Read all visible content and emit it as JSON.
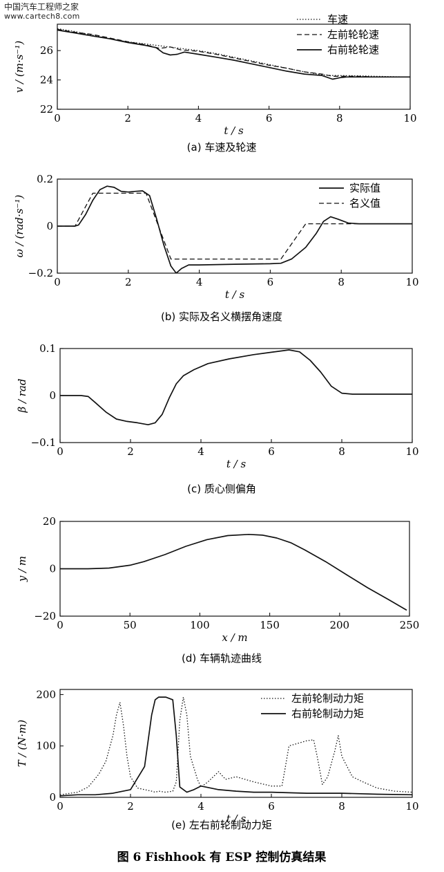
{
  "watermark": {
    "line1": "中国汽车工程师之家",
    "line2": "www.cartech8.com"
  },
  "figure_title": "图 6   Fishhook 有 ESP 控制仿真结果",
  "chart_data": [
    {
      "id": "a",
      "type": "line",
      "caption": "(a)  车速及轮速",
      "xlabel": "t / s",
      "ylabel": "v / (m·s⁻¹)",
      "xlim": [
        0,
        10
      ],
      "ylim": [
        22,
        27.8
      ],
      "xticks": [
        0,
        2,
        4,
        6,
        8,
        10
      ],
      "yticks": [
        22,
        24,
        26
      ],
      "legend_position": "top-right",
      "series": [
        {
          "name": "车速",
          "style": "dotted",
          "x": [
            0,
            0.5,
            1,
            1.5,
            2,
            2.5,
            3,
            3.5,
            4,
            4.5,
            5,
            5.5,
            6,
            6.5,
            7,
            7.5,
            7.8,
            8,
            8.5,
            9,
            9.5,
            10
          ],
          "y": [
            27.5,
            27.3,
            27.05,
            26.8,
            26.6,
            26.45,
            26.3,
            26.15,
            26.0,
            25.8,
            25.55,
            25.3,
            25.05,
            24.8,
            24.55,
            24.35,
            24.3,
            24.3,
            24.28,
            24.25,
            24.22,
            24.2
          ]
        },
        {
          "name": "左前轮轮速",
          "style": "dashed",
          "x": [
            0,
            0.5,
            1,
            1.5,
            2,
            2.5,
            2.9,
            3.2,
            3.5,
            4,
            4.5,
            5,
            5.5,
            6,
            6.5,
            7,
            7.5,
            7.8,
            8,
            8.5,
            9,
            9.5,
            10
          ],
          "y": [
            27.45,
            27.25,
            27.1,
            26.85,
            26.6,
            26.4,
            26.15,
            26.25,
            26.05,
            25.95,
            25.75,
            25.5,
            25.25,
            25.0,
            24.8,
            24.55,
            24.4,
            24.25,
            24.25,
            24.25,
            24.2,
            24.2,
            24.2
          ]
        },
        {
          "name": "右前轮轮速",
          "style": "solid",
          "x": [
            0,
            0.5,
            1,
            1.5,
            2,
            2.5,
            2.8,
            3.0,
            3.2,
            3.4,
            3.6,
            4,
            4.5,
            5,
            5.5,
            6,
            6.5,
            7,
            7.5,
            7.8,
            8,
            8.2,
            8.5,
            9,
            9.5,
            10
          ],
          "y": [
            27.4,
            27.2,
            27.0,
            26.8,
            26.55,
            26.35,
            26.2,
            25.85,
            25.7,
            25.75,
            25.9,
            25.75,
            25.55,
            25.35,
            25.1,
            24.85,
            24.6,
            24.4,
            24.3,
            24.05,
            24.15,
            24.2,
            24.2,
            24.2,
            24.2,
            24.2
          ]
        }
      ]
    },
    {
      "id": "b",
      "type": "line",
      "caption": "(b)  实际及名义横摆角速度",
      "xlabel": "t / s",
      "ylabel": "ω / (rad·s⁻¹)",
      "xlim": [
        0,
        10
      ],
      "ylim": [
        -0.2,
        0.2
      ],
      "xticks": [
        0,
        2,
        4,
        6,
        8,
        10
      ],
      "yticks": [
        -0.2,
        0,
        0.2
      ],
      "ytick_labels": [
        "-0.2",
        "0",
        "0.2"
      ],
      "legend_position": "top-right",
      "series": [
        {
          "name": "实际值",
          "style": "solid",
          "x": [
            0,
            0.5,
            0.6,
            0.8,
            1.0,
            1.2,
            1.4,
            1.6,
            1.8,
            2.0,
            2.2,
            2.4,
            2.6,
            2.8,
            3.0,
            3.2,
            3.35,
            3.5,
            3.7,
            4,
            5,
            6,
            6.3,
            6.6,
            7.0,
            7.3,
            7.5,
            7.7,
            7.9,
            8.2,
            8.5,
            9,
            10
          ],
          "y": [
            0,
            0,
            0.005,
            0.05,
            0.11,
            0.155,
            0.17,
            0.165,
            0.148,
            0.145,
            0.148,
            0.15,
            0.13,
            0.03,
            -0.08,
            -0.17,
            -0.2,
            -0.18,
            -0.165,
            -0.165,
            -0.162,
            -0.16,
            -0.158,
            -0.14,
            -0.09,
            -0.03,
            0.02,
            0.04,
            0.03,
            0.013,
            0.01,
            0.01,
            0.01
          ]
        },
        {
          "name": "名义值",
          "style": "dashed",
          "x": [
            0,
            0.5,
            1.0,
            2.5,
            3.2,
            6.3,
            7.0,
            10
          ],
          "y": [
            0,
            0,
            0.14,
            0.14,
            -0.14,
            -0.14,
            0.01,
            0.01
          ]
        }
      ]
    },
    {
      "id": "c",
      "type": "line",
      "caption": "(c)  质心侧偏角",
      "xlabel": "t / s",
      "ylabel": "β / rad",
      "xlim": [
        0,
        10
      ],
      "ylim": [
        -0.1,
        0.1
      ],
      "xticks": [
        0,
        2,
        4,
        6,
        8,
        10
      ],
      "yticks": [
        -0.1,
        0,
        0.1
      ],
      "ytick_labels": [
        "-0.1",
        "0",
        "0.1"
      ],
      "series": [
        {
          "name": "",
          "style": "solid",
          "x": [
            0,
            0.6,
            0.8,
            1.0,
            1.3,
            1.6,
            1.9,
            2.2,
            2.5,
            2.7,
            2.9,
            3.1,
            3.3,
            3.5,
            3.8,
            4.2,
            4.8,
            5.5,
            6.0,
            6.3,
            6.5,
            6.8,
            7.1,
            7.4,
            7.7,
            8.0,
            8.3,
            9,
            10
          ],
          "y": [
            0,
            0,
            -0.002,
            -0.015,
            -0.035,
            -0.05,
            -0.055,
            -0.058,
            -0.062,
            -0.058,
            -0.04,
            -0.005,
            0.025,
            0.042,
            0.055,
            0.068,
            0.078,
            0.087,
            0.092,
            0.095,
            0.097,
            0.093,
            0.075,
            0.05,
            0.02,
            0.005,
            0.003,
            0.003,
            0.003
          ]
        }
      ]
    },
    {
      "id": "d",
      "type": "line",
      "caption": "(d)  车辆轨迹曲线",
      "xlabel": "x / m",
      "ylabel": "y / m",
      "xlim": [
        0,
        250
      ],
      "ylim": [
        -20,
        20
      ],
      "xticks": [
        0,
        50,
        100,
        150,
        200,
        250
      ],
      "yticks": [
        -20,
        0,
        20
      ],
      "ytick_labels": [
        "-20",
        "0",
        "20"
      ],
      "series": [
        {
          "name": "",
          "style": "solid",
          "x": [
            0,
            20,
            35,
            50,
            60,
            75,
            90,
            105,
            120,
            135,
            145,
            155,
            165,
            175,
            190,
            205,
            220,
            235,
            248
          ],
          "y": [
            0,
            0,
            0.3,
            1.5,
            3.0,
            6.0,
            9.5,
            12.3,
            14.0,
            14.5,
            14.2,
            13.0,
            11.0,
            8.0,
            3.0,
            -2.5,
            -8.0,
            -13.0,
            -17.5
          ]
        }
      ]
    },
    {
      "id": "e",
      "type": "line",
      "caption": "(e)  左右前轮制动力矩",
      "xlabel": "t / s",
      "ylabel": "T / (N·m)",
      "xlim": [
        0,
        10
      ],
      "ylim": [
        0,
        210
      ],
      "xticks": [
        0,
        2,
        4,
        6,
        8,
        10
      ],
      "yticks": [
        0,
        100,
        200
      ],
      "legend_position": "top-right",
      "series": [
        {
          "name": "左前轮制动力矩",
          "style": "dotted",
          "x": [
            0,
            0.5,
            0.8,
            1.1,
            1.3,
            1.5,
            1.6,
            1.7,
            1.8,
            1.9,
            2.0,
            2.2,
            2.4,
            2.6,
            2.7,
            2.8,
            3.0,
            3.2,
            3.3,
            3.4,
            3.5,
            3.6,
            3.7,
            3.9,
            4.0,
            4.2,
            4.5,
            4.7,
            5.0,
            5.5,
            6.0,
            6.3,
            6.4,
            6.5,
            7.0,
            7.2,
            7.3,
            7.45,
            7.6,
            7.8,
            7.9,
            8.0,
            8.3,
            8.6,
            9.0,
            9.5,
            10
          ],
          "y": [
            5,
            10,
            20,
            45,
            70,
            120,
            160,
            185,
            140,
            80,
            40,
            18,
            15,
            12,
            10,
            12,
            10,
            12,
            30,
            150,
            195,
            160,
            80,
            35,
            20,
            30,
            50,
            35,
            40,
            30,
            22,
            22,
            60,
            100,
            110,
            112,
            80,
            25,
            40,
            90,
            120,
            80,
            40,
            30,
            18,
            12,
            10
          ]
        },
        {
          "name": "右前轮制动力矩",
          "style": "solid",
          "x": [
            0,
            0.5,
            1.0,
            1.5,
            2.0,
            2.4,
            2.6,
            2.7,
            2.8,
            3.0,
            3.2,
            3.3,
            3.4,
            3.6,
            3.8,
            4.0,
            4.5,
            5.0,
            5.5,
            6.0,
            7.0,
            8.0,
            9.0,
            10
          ],
          "y": [
            3,
            5,
            5,
            8,
            15,
            60,
            160,
            190,
            195,
            195,
            190,
            120,
            20,
            10,
            15,
            22,
            15,
            12,
            10,
            10,
            8,
            8,
            6,
            5
          ]
        }
      ]
    }
  ]
}
